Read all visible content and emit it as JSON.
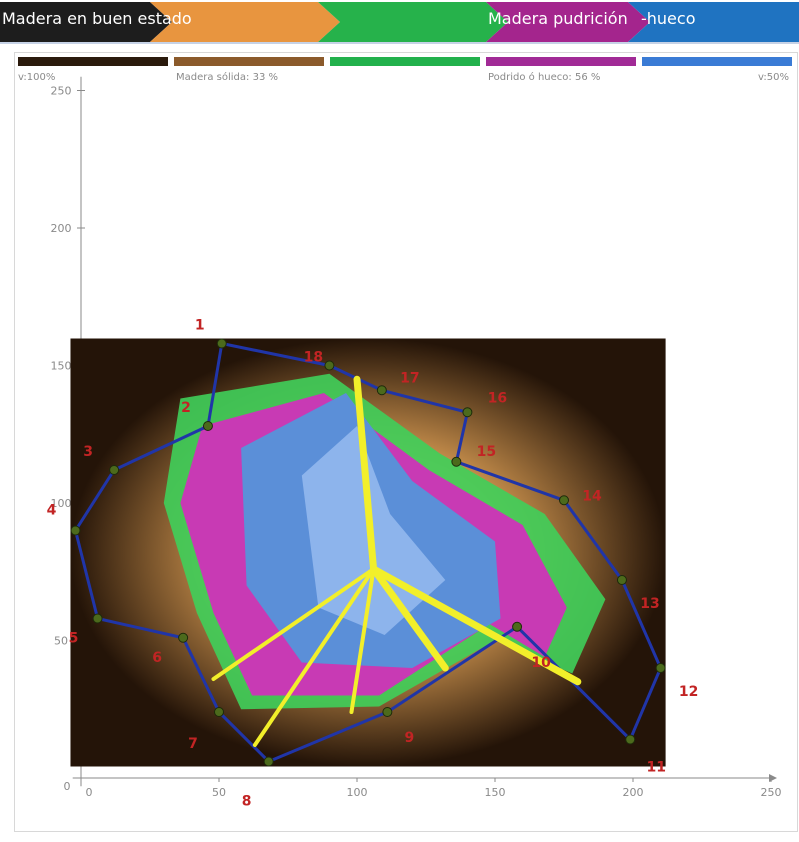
{
  "banner": {
    "segments": [
      {
        "label": "Madera en buen estado",
        "color": "#1d1d1d"
      },
      {
        "label": "",
        "color": "#e8953f"
      },
      {
        "label": "",
        "color": "#26b24b"
      },
      {
        "label": "Madera pudrición",
        "color": "#a4258d"
      },
      {
        "label": "-hueco",
        "color": "#1f73c1"
      }
    ]
  },
  "scale": {
    "colors": [
      "#2a1a0c",
      "#8b5a2b",
      "#22b14c",
      "#a12a96",
      "#3a7bd5"
    ],
    "labels": {
      "left": "v:100%",
      "solid": "Madera sólida: 33 %",
      "rotten": "Podrido ó hueco: 56 %",
      "right": "v:50%"
    }
  },
  "axes": {
    "x_ticks": [
      "0",
      "50",
      "100",
      "150",
      "200",
      "250"
    ],
    "y_ticks": [
      "50",
      "100",
      "150",
      "200",
      "250"
    ],
    "origin": "0",
    "x_range": [
      0,
      250
    ],
    "y_range": [
      0,
      250
    ]
  },
  "sensors": [
    {
      "id": "1",
      "x": 51,
      "y": 158
    },
    {
      "id": "2",
      "x": 46,
      "y": 128
    },
    {
      "id": "3",
      "x": 12,
      "y": 112
    },
    {
      "id": "4",
      "x": -2,
      "y": 90
    },
    {
      "id": "5",
      "x": 6,
      "y": 58
    },
    {
      "id": "6",
      "x": 37,
      "y": 51
    },
    {
      "id": "7",
      "x": 50,
      "y": 24
    },
    {
      "id": "8",
      "x": 68,
      "y": 6
    },
    {
      "id": "9",
      "x": 111,
      "y": 24
    },
    {
      "id": "10",
      "x": 158,
      "y": 55
    },
    {
      "id": "11",
      "x": 199,
      "y": 14
    },
    {
      "id": "12",
      "x": 210,
      "y": 40
    },
    {
      "id": "13",
      "x": 196,
      "y": 72
    },
    {
      "id": "14",
      "x": 175,
      "y": 101
    },
    {
      "id": "15",
      "x": 136,
      "y": 115
    },
    {
      "id": "16",
      "x": 140,
      "y": 133
    },
    {
      "id": "17",
      "x": 109,
      "y": 141
    },
    {
      "id": "18",
      "x": 90,
      "y": 150
    }
  ],
  "colors": {
    "outline": "#2035a8",
    "yellow": "#f2ef2a",
    "sensor_label": "#c22424",
    "wood_dark": "#241408",
    "wood_light": "#d69a52",
    "blue": "#5b8fd8",
    "magenta": "#c83ab4",
    "green": "#3fcf5a"
  }
}
